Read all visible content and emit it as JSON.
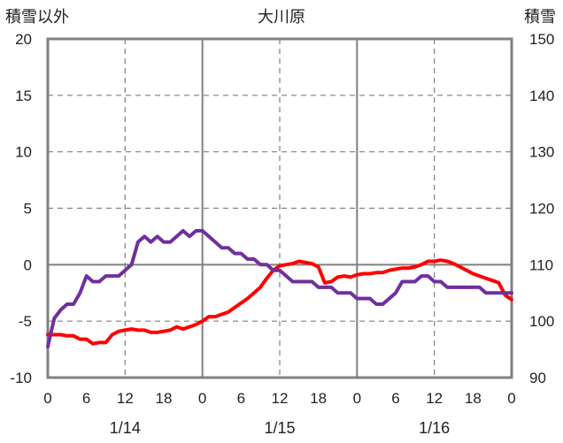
{
  "chart_data": {
    "type": "line",
    "title": "大川原",
    "ylabel_left": "積雪以外",
    "ylabel_right": "積雪",
    "ylim_left": [
      -10,
      20
    ],
    "ylim_right": [
      90,
      150
    ],
    "yticks_left": [
      -10,
      -5,
      0,
      5,
      10,
      15,
      20
    ],
    "yticks_right": [
      90,
      100,
      110,
      120,
      130,
      140,
      150
    ],
    "xlim_hours": [
      0,
      72
    ],
    "xtick_labels": [
      "0",
      "6",
      "12",
      "18",
      "0",
      "6",
      "12",
      "18",
      "0",
      "6",
      "12",
      "18",
      "0"
    ],
    "date_labels": [
      "1/14",
      "1/15",
      "1/16"
    ],
    "grid": true,
    "colors": {
      "series_left": "#ff0000",
      "series_right": "#7030a0",
      "axis": "#808080"
    },
    "series": [
      {
        "axis": "left",
        "color": "#ff0000",
        "x": [
          0,
          1,
          2,
          3,
          4,
          5,
          6,
          7,
          8,
          9,
          10,
          11,
          12,
          13,
          14,
          15,
          16,
          17,
          18,
          19,
          20,
          21,
          22,
          23,
          24,
          25,
          26,
          27,
          28,
          29,
          30,
          31,
          32,
          33,
          34,
          35,
          36,
          37,
          38,
          39,
          40,
          41,
          42,
          43,
          44,
          45,
          46,
          47,
          48,
          49,
          50,
          51,
          52,
          53,
          54,
          55,
          56,
          57,
          58,
          59,
          60,
          61,
          62,
          63,
          64,
          65,
          66,
          67,
          68,
          69,
          70,
          71,
          72
        ],
        "y": [
          -6.2,
          -6.2,
          -6.2,
          -6.3,
          -6.3,
          -6.6,
          -6.6,
          -7.0,
          -6.9,
          -6.9,
          -6.2,
          -5.9,
          -5.8,
          -5.7,
          -5.8,
          -5.8,
          -6.0,
          -6.0,
          -5.9,
          -5.8,
          -5.5,
          -5.7,
          -5.5,
          -5.3,
          -5.0,
          -4.6,
          -4.6,
          -4.4,
          -4.2,
          -3.8,
          -3.4,
          -3.0,
          -2.5,
          -2.0,
          -1.2,
          -0.5,
          -0.1,
          0.0,
          0.1,
          0.3,
          0.2,
          0.1,
          -0.2,
          -1.6,
          -1.5,
          -1.1,
          -1.0,
          -1.1,
          -0.9,
          -0.8,
          -0.8,
          -0.7,
          -0.7,
          -0.5,
          -0.4,
          -0.3,
          -0.3,
          -0.2,
          0.0,
          0.3,
          0.3,
          0.4,
          0.3,
          0.1,
          -0.2,
          -0.5,
          -0.8,
          -1.0,
          -1.2,
          -1.4,
          -1.6,
          -2.7,
          -3.1
        ]
      },
      {
        "axis": "right",
        "color": "#7030a0",
        "x": [
          0,
          1,
          2,
          3,
          4,
          5,
          6,
          7,
          8,
          9,
          10,
          11,
          12,
          13,
          14,
          15,
          16,
          17,
          18,
          19,
          20,
          21,
          22,
          23,
          24,
          25,
          26,
          27,
          28,
          29,
          30,
          31,
          32,
          33,
          34,
          35,
          36,
          37,
          38,
          39,
          40,
          41,
          42,
          43,
          44,
          45,
          46,
          47,
          48,
          49,
          50,
          51,
          52,
          53,
          54,
          55,
          56,
          57,
          58,
          59,
          60,
          61,
          62,
          63,
          64,
          65,
          66,
          67,
          68,
          69,
          70,
          71,
          72
        ],
        "y": [
          95.5,
          100.5,
          102,
          103,
          103,
          105,
          108,
          107,
          107,
          108,
          108,
          108,
          109,
          110,
          114,
          115,
          114,
          115,
          114,
          114,
          115,
          116,
          115,
          116,
          116,
          115,
          114,
          113,
          113,
          112,
          112,
          111,
          111,
          110,
          110,
          109,
          109,
          108,
          107,
          107,
          107,
          107,
          106,
          106,
          106,
          105,
          105,
          105,
          104,
          104,
          104,
          103,
          103,
          104,
          105,
          107,
          107,
          107,
          108,
          108,
          107,
          107,
          106,
          106,
          106,
          106,
          106,
          106,
          105,
          105,
          105,
          105,
          105
        ]
      }
    ]
  }
}
